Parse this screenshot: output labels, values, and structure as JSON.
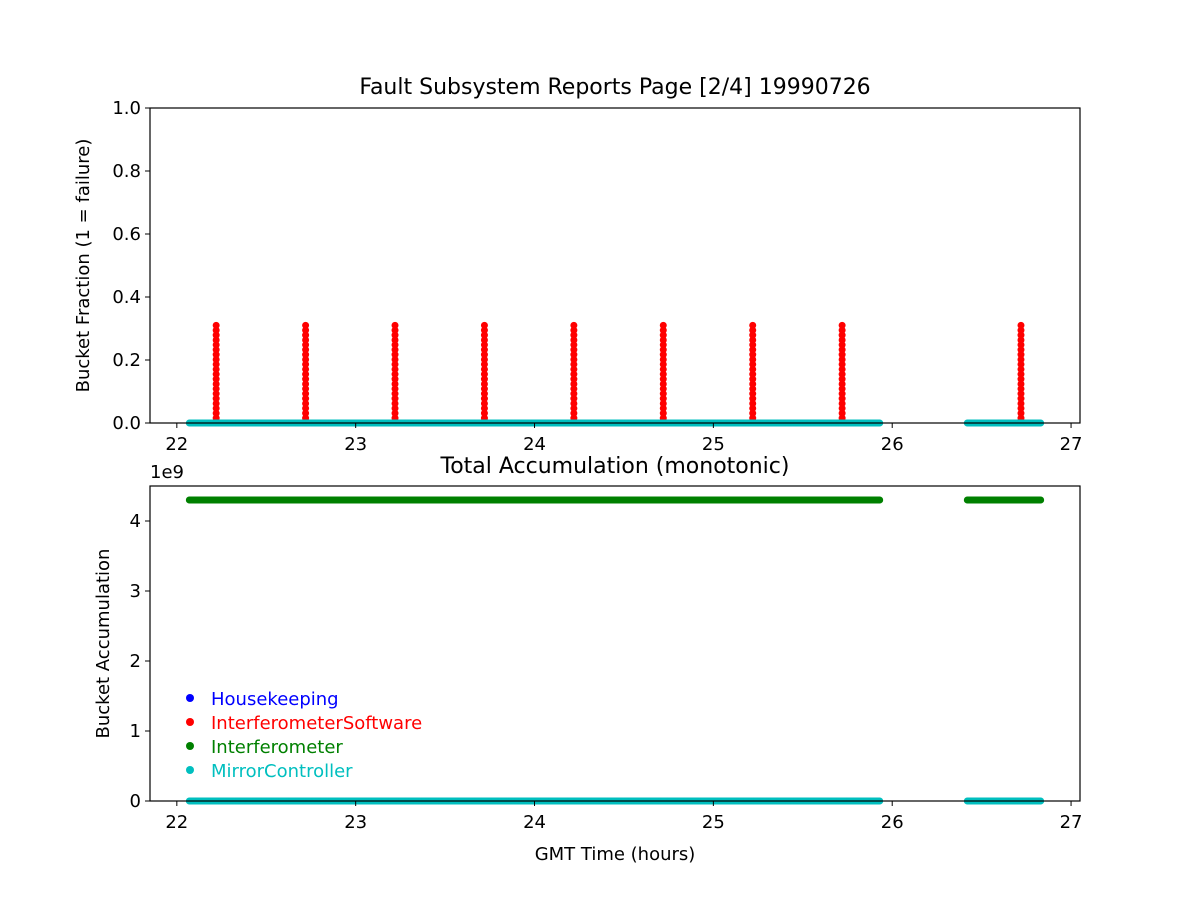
{
  "figure": {
    "background": "#ffffff"
  },
  "colors": {
    "Housekeeping": "#0000ff",
    "InterferometerSoftware": "#ff0000",
    "Interferometer": "#008000",
    "MirrorController": "#00bfbf"
  },
  "chart_data": [
    {
      "type": "scatter",
      "title": "Fault Subsystem Reports Page [2/4] 19990726",
      "xlabel": "",
      "ylabel": "Bucket Fraction (1 = failure)",
      "xlim": [
        21.85,
        27.05
      ],
      "ylim": [
        0,
        1.0
      ],
      "xticks": [
        22,
        23,
        24,
        25,
        26,
        27
      ],
      "xtick_labels": [
        "22",
        "23",
        "24",
        "25",
        "26",
        "27"
      ],
      "yticks": [
        0,
        0.2,
        0.4,
        0.6,
        0.8,
        1.0
      ],
      "ytick_labels": [
        "0.0",
        "0.2",
        "0.4",
        "0.6",
        "0.8",
        "1.0"
      ],
      "grid": false,
      "series": [
        {
          "name": "InterferometerSoftware",
          "color": "#ff0000",
          "spikes_x": [
            22.22,
            22.72,
            23.22,
            23.72,
            24.22,
            24.72,
            25.22,
            25.72,
            26.72
          ],
          "spike_max_y": 0.31
        },
        {
          "name": "MirrorController",
          "color": "#00bfbf",
          "segments": [
            {
              "x_start": 22.07,
              "x_end": 25.93,
              "y": 0
            },
            {
              "x_start": 26.42,
              "x_end": 26.83,
              "y": 0
            }
          ]
        }
      ]
    },
    {
      "type": "scatter",
      "title": "Total Accumulation (monotonic)",
      "xlabel": "GMT Time (hours)",
      "ylabel": "Bucket Accumulation",
      "y_offset_label": "1e9",
      "xlim": [
        21.85,
        27.05
      ],
      "ylim": [
        0,
        4.5
      ],
      "xticks": [
        22,
        23,
        24,
        25,
        26,
        27
      ],
      "xtick_labels": [
        "22",
        "23",
        "24",
        "25",
        "26",
        "27"
      ],
      "yticks": [
        0,
        1,
        2,
        3,
        4
      ],
      "ytick_labels": [
        "0",
        "1",
        "2",
        "3",
        "4"
      ],
      "grid": false,
      "legend": {
        "placement": "lower-left",
        "entries": [
          "Housekeeping",
          "InterferometerSoftware",
          "Interferometer",
          "MirrorController"
        ]
      },
      "series": [
        {
          "name": "Interferometer",
          "color": "#008000",
          "segments": [
            {
              "x_start": 22.07,
              "x_end": 25.93,
              "y": 4.3
            },
            {
              "x_start": 26.42,
              "x_end": 26.83,
              "y": 4.3
            }
          ]
        },
        {
          "name": "MirrorController",
          "color": "#00bfbf",
          "segments": [
            {
              "x_start": 22.07,
              "x_end": 25.93,
              "y": 0
            },
            {
              "x_start": 26.42,
              "x_end": 26.83,
              "y": 0
            }
          ]
        }
      ]
    }
  ]
}
